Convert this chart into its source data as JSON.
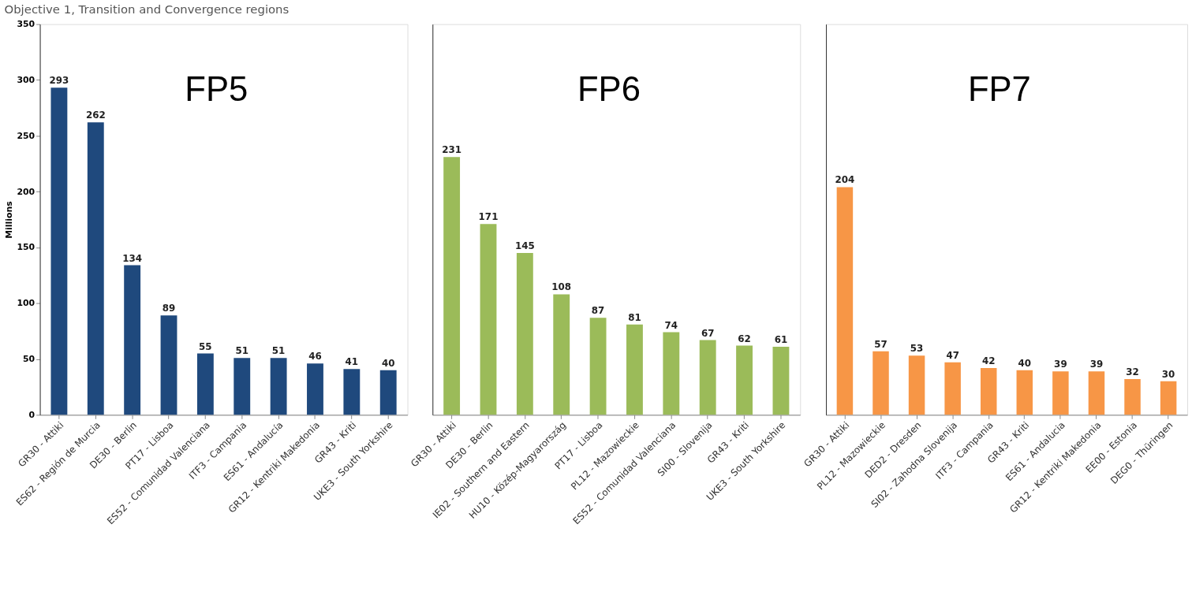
{
  "chart_data": [
    {
      "type": "bar",
      "title": "Objective 1, Transition and Convergence regions",
      "ylabel": "Millions",
      "annotations": [
        "FP5"
      ],
      "categories": [
        "GR30 - Attiki",
        "ES62 - Región de Murcia",
        "DE30 - Berlin",
        "PT17 - Lisboa",
        "ES52 - Comunidad Valenciana",
        "ITF3 - Campania",
        "ES61 - Andalucía",
        "GR12 - Kentriki Makedonia",
        "GR43 - Kriti",
        "UKE3 - South Yorkshire"
      ],
      "values": [
        293,
        262,
        134,
        89,
        55,
        51,
        51,
        46,
        41,
        40
      ],
      "color": "#1f497d",
      "ylim": [
        0,
        350
      ],
      "yticks": [
        0,
        50,
        100,
        150,
        200,
        250,
        300,
        350
      ],
      "data_labels": true,
      "grid": false
    },
    {
      "type": "bar",
      "annotations": [
        "FP6"
      ],
      "tick_labels": "x",
      "categories": [
        "GR30 - Attiki",
        "DE30 - Berlin",
        "IE02 - Southern and Eastern",
        "HU10 - Közép-Magyarország",
        "PT17 - Lisboa",
        "PL12 - Mazowieckie",
        "ES52 - Comunidad Valenciana",
        "SI00 - Slovenija",
        "GR43 - Kriti",
        "UKE3 - South Yorkshire"
      ],
      "values": [
        231,
        171,
        145,
        108,
        87,
        81,
        74,
        67,
        62,
        61
      ],
      "color": "#9bbb59",
      "ylim": [
        0,
        350
      ],
      "data_labels": true,
      "grid": false
    },
    {
      "type": "bar",
      "annotations": [
        "FP7"
      ],
      "tick_labels": "x",
      "categories": [
        "GR30 - Attiki",
        "PL12 - Mazowieckie",
        "DED2 - Dresden",
        "SI02 - Zahodna Slovenija",
        "ITF3 - Campania",
        "GR43 - Kriti",
        "ES61 - Andalucia",
        "GR12 - Kentriki Makedonia",
        "EE00 - Estonia",
        "DEG0 - Thüringen"
      ],
      "values": [
        204,
        57,
        53,
        47,
        42,
        40,
        39,
        39,
        32,
        30
      ],
      "color": "#f79646",
      "ylim": [
        0,
        350
      ],
      "data_labels": true,
      "grid": false
    }
  ]
}
